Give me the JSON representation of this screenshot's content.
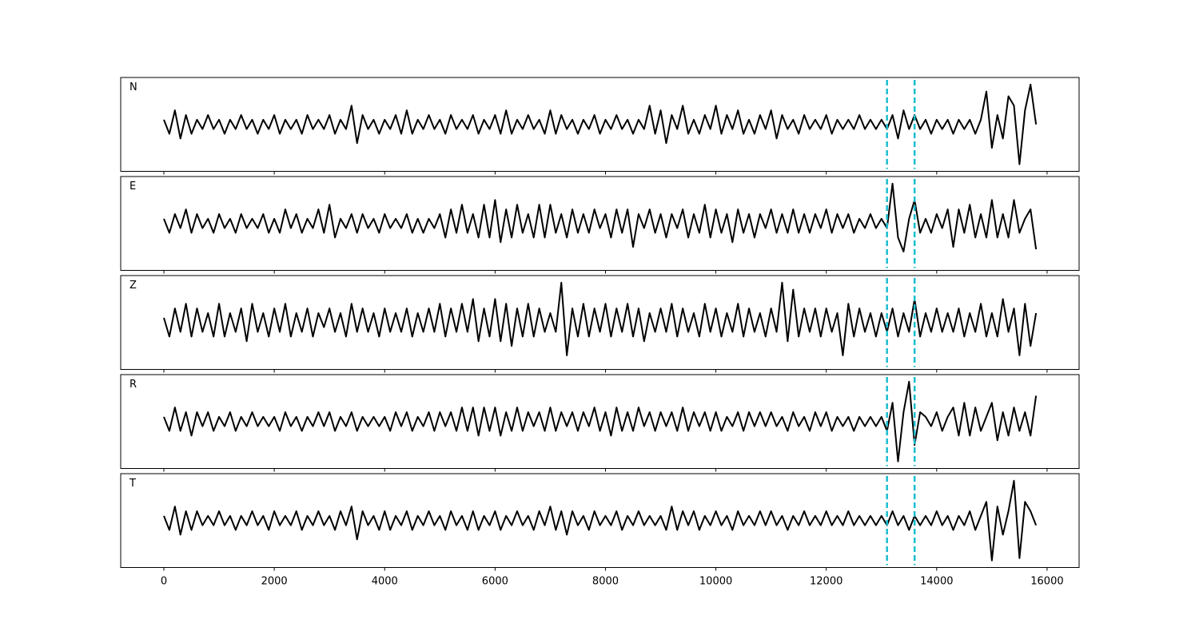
{
  "chart_data": {
    "type": "line",
    "x": [
      0,
      100,
      200,
      300,
      400,
      500,
      600,
      700,
      800,
      900,
      1000,
      1100,
      1200,
      1300,
      1400,
      1500,
      1600,
      1700,
      1800,
      1900,
      2000,
      2100,
      2200,
      2300,
      2400,
      2500,
      2600,
      2700,
      2800,
      2900,
      3000,
      3100,
      3200,
      3300,
      3400,
      3500,
      3600,
      3700,
      3800,
      3900,
      4000,
      4100,
      4200,
      4300,
      4400,
      4500,
      4600,
      4700,
      4800,
      4900,
      5000,
      5100,
      5200,
      5300,
      5400,
      5500,
      5600,
      5700,
      5800,
      5900,
      6000,
      6100,
      6200,
      6300,
      6400,
      6500,
      6600,
      6700,
      6800,
      6900,
      7000,
      7100,
      7200,
      7300,
      7400,
      7500,
      7600,
      7700,
      7800,
      7900,
      8000,
      8100,
      8200,
      8300,
      8400,
      8500,
      8600,
      8700,
      8800,
      8900,
      9000,
      9100,
      9200,
      9300,
      9400,
      9500,
      9600,
      9700,
      9800,
      9900,
      10000,
      10100,
      10200,
      10300,
      10400,
      10500,
      10600,
      10700,
      10800,
      10900,
      11000,
      11100,
      11200,
      11300,
      11400,
      11500,
      11600,
      11700,
      11800,
      11900,
      12000,
      12100,
      12200,
      12300,
      12400,
      12500,
      12600,
      12700,
      12800,
      12900,
      13000,
      13100,
      13200,
      13300,
      13400,
      13500,
      13600,
      13700,
      13800,
      13900,
      14000,
      14100,
      14200,
      14300,
      14400,
      14500,
      14600,
      14700,
      14800,
      14900,
      15000,
      15100,
      15200,
      15300,
      15400,
      15500,
      15600,
      15700,
      15800
    ],
    "series": [
      {
        "name": "N",
        "color": "#000000",
        "values": [
          0.1,
          -0.2,
          0.3,
          -0.3,
          0.2,
          -0.2,
          0.1,
          -0.1,
          0.2,
          -0.1,
          0.1,
          -0.2,
          0.1,
          -0.1,
          0.2,
          -0.1,
          0.1,
          -0.2,
          0.1,
          -0.1,
          0.2,
          -0.2,
          0.1,
          -0.1,
          0.1,
          -0.2,
          0.2,
          -0.1,
          0.1,
          -0.1,
          0.2,
          -0.2,
          0.1,
          -0.1,
          0.4,
          -0.4,
          0.2,
          -0.1,
          0.1,
          -0.2,
          0.1,
          -0.1,
          0.2,
          -0.2,
          0.3,
          -0.2,
          0.1,
          -0.1,
          0.2,
          -0.1,
          0.1,
          -0.2,
          0.2,
          -0.1,
          0.1,
          -0.1,
          0.2,
          -0.2,
          0.1,
          -0.1,
          0.2,
          -0.2,
          0.3,
          -0.2,
          0.1,
          -0.1,
          0.2,
          -0.1,
          0.1,
          -0.2,
          0.3,
          -0.2,
          0.2,
          -0.1,
          0.1,
          -0.2,
          0.1,
          -0.1,
          0.2,
          -0.2,
          0.1,
          -0.1,
          0.2,
          -0.1,
          0.1,
          -0.2,
          0.1,
          -0.1,
          0.4,
          -0.2,
          0.3,
          -0.4,
          0.2,
          -0.1,
          0.4,
          -0.2,
          0.1,
          -0.2,
          0.2,
          -0.1,
          0.4,
          -0.2,
          0.2,
          -0.1,
          0.3,
          -0.2,
          0.1,
          -0.2,
          0.2,
          -0.1,
          0.3,
          -0.3,
          0.2,
          -0.1,
          0.1,
          -0.2,
          0.2,
          -0.1,
          0.1,
          -0.1,
          0.2,
          -0.2,
          0.1,
          -0.1,
          0.1,
          -0.1,
          0.2,
          -0.1,
          0.1,
          -0.1,
          0.1,
          -0.1,
          0.2,
          -0.3,
          0.3,
          -0.1,
          0.2,
          -0.1,
          0.1,
          -0.2,
          0.1,
          -0.1,
          0.1,
          -0.2,
          0.1,
          -0.1,
          0.1,
          -0.2,
          0.1,
          0.7,
          -0.5,
          0.2,
          -0.3,
          0.6,
          0.4,
          -0.85,
          0.3,
          0.85,
          0.0
        ]
      },
      {
        "name": "E",
        "color": "#000000",
        "values": [
          0.1,
          -0.2,
          0.2,
          -0.1,
          0.3,
          -0.2,
          0.2,
          -0.1,
          0.1,
          -0.2,
          0.2,
          -0.1,
          0.1,
          -0.2,
          0.2,
          -0.1,
          0.1,
          -0.1,
          0.2,
          -0.2,
          0.1,
          -0.2,
          0.3,
          -0.1,
          0.2,
          -0.2,
          0.1,
          -0.1,
          0.3,
          -0.2,
          0.4,
          -0.3,
          0.1,
          -0.1,
          0.2,
          -0.2,
          0.2,
          -0.1,
          0.1,
          -0.2,
          0.2,
          -0.1,
          0.1,
          -0.1,
          0.2,
          -0.2,
          0.1,
          -0.2,
          0.1,
          -0.1,
          0.2,
          -0.3,
          0.3,
          -0.2,
          0.4,
          -0.2,
          0.2,
          -0.3,
          0.4,
          -0.3,
          0.5,
          -0.4,
          0.3,
          -0.3,
          0.4,
          -0.2,
          0.2,
          -0.3,
          0.4,
          -0.3,
          0.4,
          -0.2,
          0.2,
          -0.3,
          0.3,
          -0.2,
          0.2,
          -0.2,
          0.3,
          -0.1,
          0.2,
          -0.3,
          0.3,
          -0.2,
          0.3,
          -0.5,
          0.2,
          -0.1,
          0.3,
          -0.2,
          0.2,
          -0.3,
          0.2,
          -0.1,
          0.3,
          -0.3,
          0.2,
          -0.2,
          0.4,
          -0.3,
          0.3,
          -0.2,
          0.2,
          -0.4,
          0.3,
          -0.2,
          0.2,
          -0.3,
          0.2,
          -0.1,
          0.3,
          -0.2,
          0.2,
          -0.2,
          0.3,
          -0.2,
          0.2,
          -0.2,
          0.2,
          -0.1,
          0.3,
          -0.2,
          0.2,
          -0.1,
          0.2,
          -0.2,
          0.1,
          -0.1,
          0.2,
          -0.1,
          0.1,
          -0.1,
          0.85,
          -0.3,
          -0.6,
          0.1,
          0.5,
          -0.2,
          0.1,
          -0.2,
          0.2,
          -0.1,
          0.3,
          -0.5,
          0.3,
          -0.2,
          0.4,
          -0.3,
          0.2,
          -0.3,
          0.5,
          -0.3,
          0.2,
          -0.3,
          0.5,
          -0.2,
          0.1,
          0.3,
          -0.55
        ]
      },
      {
        "name": "Z",
        "color": "#000000",
        "values": [
          0.1,
          -0.3,
          0.3,
          -0.2,
          0.4,
          -0.3,
          0.3,
          -0.2,
          0.2,
          -0.3,
          0.4,
          -0.3,
          0.2,
          -0.2,
          0.3,
          -0.4,
          0.4,
          -0.2,
          0.2,
          -0.3,
          0.3,
          -0.2,
          0.4,
          -0.3,
          0.2,
          -0.2,
          0.3,
          -0.3,
          0.2,
          -0.1,
          0.3,
          -0.2,
          0.2,
          -0.3,
          0.4,
          -0.2,
          0.3,
          -0.2,
          0.2,
          -0.3,
          0.3,
          -0.2,
          0.2,
          -0.2,
          0.3,
          -0.3,
          0.2,
          -0.2,
          0.3,
          -0.2,
          0.4,
          -0.3,
          0.3,
          -0.2,
          0.4,
          -0.2,
          0.5,
          -0.4,
          0.3,
          -0.3,
          0.5,
          -0.4,
          0.4,
          -0.5,
          0.3,
          -0.3,
          0.4,
          -0.3,
          0.3,
          -0.2,
          0.2,
          -0.2,
          0.85,
          -0.7,
          0.3,
          -0.3,
          0.4,
          -0.3,
          0.3,
          -0.2,
          0.4,
          -0.3,
          0.3,
          -0.2,
          0.4,
          -0.3,
          0.3,
          -0.4,
          0.2,
          -0.2,
          0.3,
          -0.2,
          0.4,
          -0.3,
          0.3,
          -0.2,
          0.2,
          -0.3,
          0.4,
          -0.2,
          0.3,
          -0.3,
          0.2,
          -0.2,
          0.4,
          -0.3,
          0.3,
          -0.2,
          0.2,
          -0.3,
          0.3,
          -0.2,
          0.85,
          -0.4,
          0.7,
          -0.3,
          0.3,
          -0.2,
          0.3,
          -0.3,
          0.3,
          -0.2,
          0.2,
          -0.7,
          0.4,
          -0.3,
          0.3,
          -0.2,
          0.2,
          -0.3,
          0.2,
          -0.2,
          0.3,
          -0.3,
          0.2,
          -0.2,
          0.5,
          -0.3,
          0.2,
          -0.2,
          0.3,
          -0.2,
          0.2,
          -0.2,
          0.3,
          -0.3,
          0.2,
          -0.2,
          0.4,
          -0.3,
          0.2,
          -0.3,
          0.5,
          -0.2,
          0.3,
          -0.7,
          0.4,
          -0.5,
          0.2
        ]
      },
      {
        "name": "R",
        "color": "#000000",
        "values": [
          0.1,
          -0.2,
          0.3,
          -0.2,
          0.2,
          -0.3,
          0.2,
          -0.1,
          0.2,
          -0.2,
          0.1,
          -0.1,
          0.2,
          -0.2,
          0.1,
          -0.1,
          0.2,
          -0.1,
          0.1,
          -0.1,
          0.1,
          -0.2,
          0.2,
          -0.1,
          0.1,
          -0.2,
          0.1,
          -0.1,
          0.2,
          -0.1,
          0.2,
          -0.2,
          0.1,
          -0.1,
          0.2,
          -0.2,
          0.1,
          -0.1,
          0.1,
          -0.1,
          0.1,
          -0.2,
          0.2,
          -0.1,
          0.2,
          -0.2,
          0.1,
          -0.1,
          0.2,
          -0.2,
          0.2,
          -0.1,
          0.2,
          -0.2,
          0.3,
          -0.2,
          0.3,
          -0.3,
          0.3,
          -0.2,
          0.3,
          -0.3,
          0.2,
          -0.2,
          0.3,
          -0.2,
          0.2,
          -0.1,
          0.2,
          -0.2,
          0.3,
          -0.2,
          0.2,
          -0.1,
          0.2,
          -0.2,
          0.2,
          -0.1,
          0.3,
          -0.2,
          0.2,
          -0.3,
          0.3,
          -0.2,
          0.2,
          -0.2,
          0.3,
          -0.1,
          0.2,
          -0.2,
          0.2,
          -0.1,
          0.2,
          -0.2,
          0.3,
          -0.2,
          0.2,
          -0.1,
          0.2,
          -0.2,
          0.2,
          -0.2,
          0.1,
          -0.1,
          0.2,
          -0.2,
          0.2,
          -0.1,
          0.2,
          -0.1,
          0.2,
          -0.1,
          0.1,
          -0.2,
          0.2,
          -0.1,
          0.1,
          -0.2,
          0.2,
          -0.1,
          0.2,
          -0.2,
          0.1,
          -0.1,
          0.1,
          -0.2,
          0.1,
          -0.1,
          0.1,
          -0.1,
          0.1,
          -0.2,
          0.4,
          -0.85,
          0.2,
          0.85,
          -0.5,
          0.2,
          0.1,
          -0.1,
          0.2,
          -0.2,
          0.1,
          0.3,
          -0.3,
          0.4,
          -0.3,
          0.3,
          -0.2,
          0.1,
          0.4,
          -0.4,
          0.2,
          -0.3,
          0.3,
          -0.2,
          0.2,
          -0.3,
          0.55
        ]
      },
      {
        "name": "T",
        "color": "#000000",
        "values": [
          0.1,
          -0.2,
          0.3,
          -0.3,
          0.2,
          -0.2,
          0.2,
          -0.1,
          0.1,
          -0.1,
          0.2,
          -0.1,
          0.1,
          -0.2,
          0.1,
          -0.1,
          0.2,
          -0.1,
          0.1,
          -0.2,
          0.2,
          -0.1,
          0.1,
          -0.1,
          0.2,
          -0.2,
          0.1,
          -0.1,
          0.2,
          -0.1,
          0.1,
          -0.2,
          0.2,
          -0.1,
          0.3,
          -0.4,
          0.2,
          -0.1,
          0.1,
          -0.2,
          0.2,
          -0.2,
          0.1,
          -0.1,
          0.2,
          -0.2,
          0.1,
          -0.1,
          0.2,
          -0.1,
          0.1,
          -0.2,
          0.2,
          -0.1,
          0.1,
          -0.2,
          0.2,
          -0.2,
          0.1,
          -0.1,
          0.2,
          -0.2,
          0.1,
          -0.1,
          0.2,
          -0.1,
          0.1,
          -0.2,
          0.2,
          -0.1,
          0.3,
          -0.2,
          0.2,
          -0.3,
          0.2,
          -0.1,
          0.1,
          -0.2,
          0.2,
          -0.1,
          0.1,
          -0.1,
          0.2,
          -0.2,
          0.1,
          -0.1,
          0.2,
          -0.1,
          0.1,
          -0.1,
          0.1,
          -0.2,
          0.3,
          -0.2,
          0.2,
          -0.1,
          0.2,
          -0.2,
          0.1,
          -0.1,
          0.2,
          -0.1,
          0.1,
          -0.2,
          0.2,
          -0.1,
          0.1,
          -0.1,
          0.2,
          -0.1,
          0.2,
          -0.1,
          0.1,
          -0.2,
          0.1,
          -0.1,
          0.2,
          -0.1,
          0.1,
          -0.1,
          0.2,
          -0.1,
          0.1,
          -0.1,
          0.2,
          -0.1,
          0.1,
          -0.1,
          0.1,
          -0.1,
          0.1,
          -0.1,
          0.2,
          -0.1,
          0.1,
          -0.2,
          0.1,
          -0.1,
          0.1,
          -0.1,
          0.2,
          -0.1,
          0.1,
          -0.2,
          0.1,
          -0.1,
          0.2,
          -0.2,
          0.1,
          0.4,
          -0.85,
          0.3,
          -0.3,
          0.2,
          0.85,
          -0.8,
          0.4,
          0.2,
          -0.1
        ]
      }
    ],
    "ylim": [
      -1,
      1
    ],
    "xlim": [
      -782,
      16580
    ],
    "xticks": [
      0,
      2000,
      4000,
      6000,
      8000,
      10000,
      12000,
      14000,
      16000
    ],
    "vlines": [
      13100,
      13600
    ],
    "vline_color": "#17becf"
  }
}
